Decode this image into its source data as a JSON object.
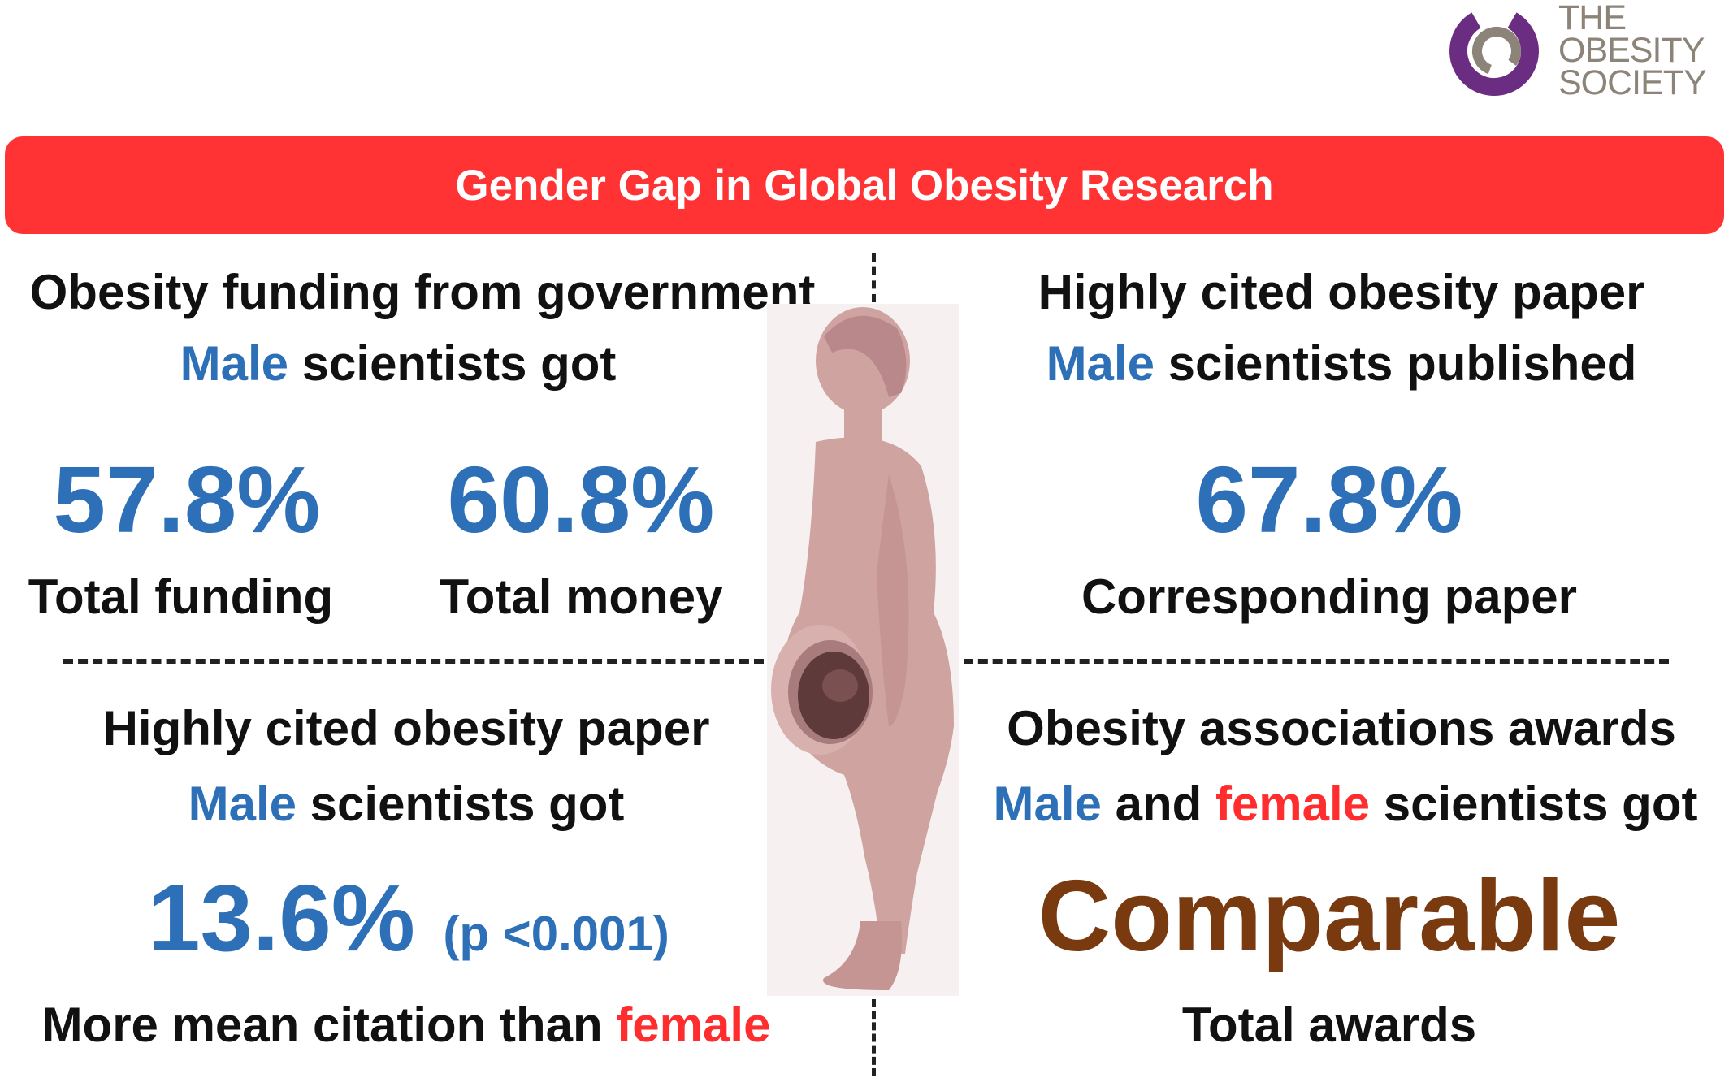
{
  "logo": {
    "line1": "THE",
    "line2": "OBESITY",
    "line3": "SOCIETY",
    "colors": {
      "ring_outer": "#6b2d82",
      "ring_inner": "#8c8478"
    }
  },
  "banner": {
    "title": "Gender Gap in Global Obesity Research",
    "color": "#ff3333"
  },
  "top_left": {
    "heading": "Obesity funding from government",
    "subject_male": "Male",
    "subject_rest": " scientists got",
    "stats": [
      {
        "value": "57.8%",
        "label": "Total funding"
      },
      {
        "value": "60.8%",
        "label": "Total money"
      }
    ]
  },
  "top_right": {
    "heading": "Highly cited obesity paper",
    "subject_male": "Male",
    "subject_rest": " scientists published",
    "stat": {
      "value": "67.8%",
      "label": "Corresponding paper"
    }
  },
  "bottom_left": {
    "heading": "Highly cited obesity paper",
    "subject_male": "Male",
    "subject_rest": " scientists got",
    "stat_value": "13.6%",
    "p_value": "(p <0.001)",
    "caption_prefix": "More mean citation than ",
    "caption_female": "female"
  },
  "bottom_right": {
    "heading": "Obesity associations awards",
    "subject_male": "Male",
    "subject_and": " and ",
    "subject_female": "female",
    "subject_rest": " scientists got",
    "stat_value": "Comparable",
    "label": "Total awards"
  },
  "colors": {
    "male_blue": "#2d70b8",
    "female_red": "#ff2d2d",
    "comparable_brown": "#7a3a10",
    "figure_skin": "#cfa3a0"
  },
  "figure_icon": "pregnant-woman-silhouette-icon"
}
